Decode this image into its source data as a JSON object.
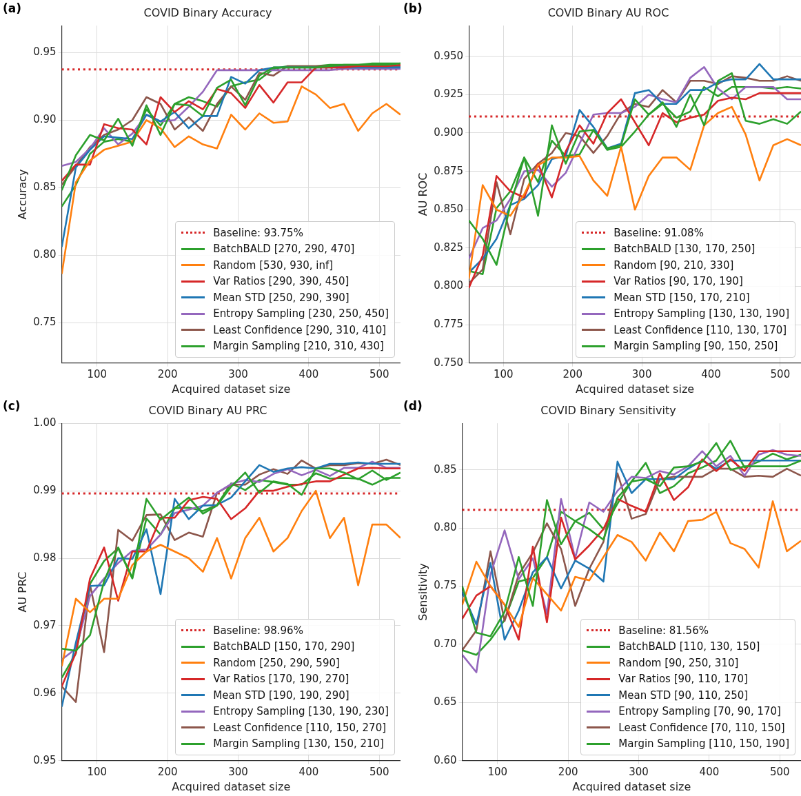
{
  "chart_data": [
    {
      "type": "line",
      "title": "COVID Binary Accuracy",
      "xlabel": "Acquired dataset size",
      "ylabel": "Accuracy",
      "annotations": [
        "(a)"
      ],
      "grid": true,
      "legend": "bottom right",
      "x": [
        50,
        70,
        90,
        110,
        130,
        150,
        170,
        190,
        210,
        230,
        250,
        270,
        290,
        310,
        330,
        350,
        370,
        390,
        410,
        430,
        450,
        470,
        490,
        510,
        530
      ],
      "xlim": [
        50,
        530
      ],
      "xticks": [
        100,
        200,
        300,
        400,
        500
      ],
      "ylim": [
        0.72,
        0.97
      ],
      "yticks": [
        0.75,
        {
          "value": 0.8,
          "label": "0.80"
        },
        0.85,
        {
          "value": 0.9,
          "label": "0.90"
        },
        0.95
      ],
      "ref_lines": [
        {
          "axis": "y",
          "value": 0.9375,
          "label": "Baseline: 93.75%",
          "color": "#d62728",
          "line_style": "dotted"
        }
      ],
      "series": [
        {
          "name": "BatchBALD [270, 290, 470]",
          "color": "#2ca02c",
          "values": [
            0.848,
            0.874,
            0.889,
            0.885,
            0.901,
            0.881,
            0.911,
            0.889,
            0.912,
            0.911,
            0.903,
            0.924,
            0.93,
            0.911,
            0.933,
            0.939,
            0.939,
            0.939,
            0.939,
            0.94,
            0.941,
            0.941,
            0.941,
            0.941,
            0.942
          ]
        },
        {
          "name": "Random [530, 930, inf]",
          "color": "#ff7f0e",
          "values": [
            0.786,
            0.854,
            0.87,
            0.878,
            0.881,
            0.884,
            0.9,
            0.894,
            0.88,
            0.888,
            0.882,
            0.879,
            0.904,
            0.893,
            0.905,
            0.898,
            0.899,
            0.925,
            0.919,
            0.909,
            0.912,
            0.892,
            0.905,
            0.912,
            0.904
          ]
        },
        {
          "name": "Var Ratios [290, 390, 450]",
          "color": "#d62728",
          "values": [
            0.855,
            0.867,
            0.867,
            0.897,
            0.894,
            0.893,
            0.882,
            0.917,
            0.906,
            0.914,
            0.908,
            0.923,
            0.92,
            0.909,
            0.926,
            0.913,
            0.928,
            0.928,
            0.939,
            0.939,
            0.939,
            0.94,
            0.94,
            0.94,
            0.941
          ]
        },
        {
          "name": "Mean STD [250, 290, 390]",
          "color": "#1f77b4",
          "values": [
            0.806,
            0.865,
            0.878,
            0.888,
            0.887,
            0.886,
            0.904,
            0.899,
            0.906,
            0.894,
            0.903,
            0.903,
            0.932,
            0.927,
            0.937,
            0.939,
            0.939,
            0.939,
            0.939,
            0.939,
            0.939,
            0.939,
            0.939,
            0.939,
            0.939
          ]
        },
        {
          "name": "Entropy Sampling [230, 250, 450]",
          "color": "#9467bd",
          "values": [
            0.866,
            0.869,
            0.879,
            0.894,
            0.882,
            0.89,
            0.904,
            0.899,
            0.9,
            0.91,
            0.921,
            0.937,
            0.937,
            0.937,
            0.937,
            0.937,
            0.937,
            0.937,
            0.937,
            0.937,
            0.938,
            0.938,
            0.938,
            0.938,
            0.938
          ]
        },
        {
          "name": "Least Confidence [290, 310, 410]",
          "color": "#8c564b",
          "values": [
            0.852,
            0.866,
            0.88,
            0.889,
            0.893,
            0.9,
            0.917,
            0.912,
            0.893,
            0.902,
            0.892,
            0.912,
            0.925,
            0.915,
            0.935,
            0.933,
            0.94,
            0.94,
            0.94,
            0.94,
            0.94,
            0.94,
            0.94,
            0.94,
            0.94
          ]
        },
        {
          "name": "Margin Sampling [210, 310, 430]",
          "color": "#2ca02c",
          "values": [
            0.836,
            0.852,
            0.875,
            0.884,
            0.886,
            0.884,
            0.908,
            0.896,
            0.912,
            0.917,
            0.914,
            0.91,
            0.925,
            0.928,
            0.93,
            0.938,
            0.94,
            0.94,
            0.94,
            0.941,
            0.941,
            0.941,
            0.942,
            0.942,
            0.942
          ]
        }
      ]
    },
    {
      "type": "line",
      "title": "COVID Binary AU ROC",
      "xlabel": "Acquired dataset size",
      "ylabel": "AU ROC",
      "annotations": [
        "(b)"
      ],
      "grid": true,
      "legend": "bottom right",
      "x": [
        50,
        70,
        90,
        110,
        130,
        150,
        170,
        190,
        210,
        230,
        250,
        270,
        290,
        310,
        330,
        350,
        370,
        390,
        410,
        430,
        450,
        470,
        490,
        510,
        530
      ],
      "xlim": [
        50,
        530
      ],
      "xticks": [
        100,
        200,
        300,
        400,
        500
      ],
      "ylim": [
        0.75,
        0.97
      ],
      "yticks": [
        {
          "value": 0.75,
          "label": "0.750"
        },
        0.775,
        {
          "value": 0.8,
          "label": "0.800"
        },
        0.825,
        {
          "value": 0.85,
          "label": "0.850"
        },
        0.875,
        {
          "value": 0.9,
          "label": "0.900"
        },
        0.925,
        {
          "value": 0.95,
          "label": "0.950"
        }
      ],
      "ref_lines": [
        {
          "axis": "y",
          "value": 0.9108,
          "label": "Baseline: 91.08%",
          "color": "#d62728",
          "line_style": "dotted"
        }
      ],
      "series": [
        {
          "name": "BatchBALD [130, 170, 250]",
          "color": "#2ca02c",
          "values": [
            0.843,
            0.831,
            0.814,
            0.853,
            0.884,
            0.846,
            0.905,
            0.88,
            0.901,
            0.902,
            0.89,
            0.892,
            0.922,
            0.912,
            0.92,
            0.904,
            0.925,
            0.905,
            0.934,
            0.939,
            0.908,
            0.906,
            0.909,
            0.906,
            0.914
          ]
        },
        {
          "name": "Random [90, 210, 330]",
          "color": "#ff7f0e",
          "values": [
            0.805,
            0.866,
            0.85,
            0.846,
            0.86,
            0.879,
            0.884,
            0.884,
            0.885,
            0.869,
            0.859,
            0.891,
            0.85,
            0.872,
            0.884,
            0.884,
            0.876,
            0.905,
            0.913,
            0.917,
            0.899,
            0.869,
            0.892,
            0.896,
            0.892
          ]
        },
        {
          "name": "Var Ratios [90, 170, 190]",
          "color": "#d62728",
          "values": [
            0.799,
            0.82,
            0.872,
            0.862,
            0.858,
            0.88,
            0.858,
            0.888,
            0.905,
            0.893,
            0.913,
            0.922,
            0.907,
            0.892,
            0.913,
            0.907,
            0.91,
            0.912,
            0.921,
            0.923,
            0.922,
            0.926,
            0.926,
            0.926,
            0.926
          ]
        },
        {
          "name": "Mean STD [150, 170, 210]",
          "color": "#1f77b4",
          "values": [
            0.809,
            0.818,
            0.831,
            0.853,
            0.857,
            0.866,
            0.883,
            0.885,
            0.915,
            0.904,
            0.89,
            0.893,
            0.926,
            0.928,
            0.919,
            0.919,
            0.928,
            0.928,
            0.933,
            0.935,
            0.935,
            0.945,
            0.935,
            0.935,
            0.935
          ]
        },
        {
          "name": "Entropy Sampling [130, 130, 190]",
          "color": "#9467bd",
          "values": [
            0.818,
            0.838,
            0.843,
            0.857,
            0.875,
            0.876,
            0.865,
            0.874,
            0.893,
            0.912,
            0.913,
            0.913,
            0.917,
            0.925,
            0.922,
            0.92,
            0.936,
            0.943,
            0.929,
            0.922,
            0.93,
            0.93,
            0.93,
            0.922,
            0.922
          ]
        },
        {
          "name": "Least Confidence [110, 130, 170]",
          "color": "#8c564b",
          "values": [
            0.802,
            0.811,
            0.868,
            0.834,
            0.87,
            0.88,
            0.887,
            0.9,
            0.898,
            0.887,
            0.898,
            0.913,
            0.919,
            0.917,
            0.928,
            0.92,
            0.934,
            0.934,
            0.932,
            0.937,
            0.936,
            0.934,
            0.934,
            0.937,
            0.934
          ]
        },
        {
          "name": "Margin Sampling [90, 150, 250]",
          "color": "#2ca02c",
          "values": [
            0.81,
            0.808,
            0.851,
            0.862,
            0.884,
            0.868,
            0.895,
            0.885,
            0.886,
            0.902,
            0.889,
            0.891,
            0.901,
            0.912,
            0.919,
            0.91,
            0.914,
            0.93,
            0.924,
            0.93,
            0.93,
            0.93,
            0.929,
            0.93,
            0.929
          ]
        }
      ]
    },
    {
      "type": "line",
      "title": "COVID Binary AU PRC",
      "xlabel": "Acquired dataset size",
      "ylabel": "AU PRC",
      "annotations": [
        "(c)"
      ],
      "grid": true,
      "legend": "bottom right",
      "x": [
        50,
        70,
        90,
        110,
        130,
        150,
        170,
        190,
        210,
        230,
        250,
        270,
        290,
        310,
        330,
        350,
        370,
        390,
        410,
        430,
        450,
        470,
        490,
        510,
        530
      ],
      "xlim": [
        50,
        530
      ],
      "xticks": [
        100,
        200,
        300,
        400,
        500
      ],
      "ylim": [
        0.95,
        1.0
      ],
      "yticks": [
        0.95,
        0.96,
        0.97,
        0.98,
        0.99,
        {
          "value": 1.0,
          "label": "1.00"
        }
      ],
      "ref_lines": [
        {
          "axis": "y",
          "value": 0.9896,
          "label": "Baseline: 98.96%",
          "color": "#d62728",
          "line_style": "dotted"
        }
      ],
      "series": [
        {
          "name": "BatchBALD [150, 170, 290]",
          "color": "#2ca02c",
          "values": [
            0.9666,
            0.9663,
            0.9686,
            0.9766,
            0.9816,
            0.9771,
            0.9888,
            0.9857,
            0.9874,
            0.989,
            0.9866,
            0.9878,
            0.9906,
            0.9927,
            0.9897,
            0.9914,
            0.991,
            0.9894,
            0.9933,
            0.9933,
            0.9927,
            0.9917,
            0.993,
            0.9916,
            0.9927
          ]
        },
        {
          "name": "Random [250, 290, 590]",
          "color": "#ff7f0e",
          "values": [
            0.964,
            0.974,
            0.972,
            0.974,
            0.974,
            0.979,
            0.981,
            0.982,
            0.981,
            0.98,
            0.978,
            0.983,
            0.977,
            0.983,
            0.986,
            0.981,
            0.983,
            0.987,
            0.99,
            0.983,
            0.986,
            0.976,
            0.985,
            0.985,
            0.983
          ]
        },
        {
          "name": "Var Ratios [170, 190, 270]",
          "color": "#d62728",
          "values": [
            0.961,
            0.966,
            0.977,
            0.9816,
            0.9737,
            0.981,
            0.981,
            0.986,
            0.986,
            0.9886,
            0.9891,
            0.9888,
            0.9858,
            0.9874,
            0.99,
            0.99,
            0.9906,
            0.991,
            0.9914,
            0.9914,
            0.9924,
            0.9933,
            0.9934,
            0.9933,
            0.9933
          ]
        },
        {
          "name": "Mean STD [190, 190, 290]",
          "color": "#1f77b4",
          "values": [
            0.958,
            0.9675,
            0.9759,
            0.976,
            0.98,
            0.9799,
            0.9843,
            0.9747,
            0.9888,
            0.9858,
            0.9878,
            0.9879,
            0.989,
            0.9914,
            0.9938,
            0.9928,
            0.9933,
            0.9935,
            0.9933,
            0.994,
            0.994,
            0.9942,
            0.994,
            0.994,
            0.994
          ]
        },
        {
          "name": "Entropy Sampling [130, 190, 230]",
          "color": "#9467bd",
          "values": [
            0.965,
            0.9666,
            0.9744,
            0.977,
            0.9793,
            0.9811,
            0.9813,
            0.9835,
            0.9867,
            0.9872,
            0.9878,
            0.9897,
            0.991,
            0.9916,
            0.9913,
            0.9925,
            0.9932,
            0.9923,
            0.9931,
            0.9922,
            0.9934,
            0.9934,
            0.9943,
            0.9934,
            0.9934
          ]
        },
        {
          "name": "Least Confidence [110, 150, 270]",
          "color": "#8c564b",
          "values": [
            0.961,
            0.9587,
            0.9761,
            0.9661,
            0.9842,
            0.9826,
            0.9864,
            0.9865,
            0.9827,
            0.9838,
            0.9832,
            0.9897,
            0.9909,
            0.9909,
            0.9924,
            0.9932,
            0.9925,
            0.9945,
            0.9933,
            0.9938,
            0.9938,
            0.9941,
            0.994,
            0.9946,
            0.9938
          ]
        },
        {
          "name": "Margin Sampling [130, 150, 210]",
          "color": "#2ca02c",
          "values": [
            0.9623,
            0.9659,
            0.9762,
            0.9796,
            0.9815,
            0.977,
            0.9859,
            0.9835,
            0.9874,
            0.9875,
            0.987,
            0.9879,
            0.9911,
            0.9901,
            0.9916,
            0.9913,
            0.9909,
            0.9909,
            0.9926,
            0.9918,
            0.9919,
            0.9918,
            0.9909,
            0.9919,
            0.9919
          ]
        }
      ]
    },
    {
      "type": "line",
      "title": "COVID Binary Sensitivity",
      "xlabel": "Acquired dataset size",
      "ylabel": "Sensitivity",
      "annotations": [
        "(d)"
      ],
      "grid": true,
      "legend": "bottom right",
      "x": [
        50,
        70,
        90,
        110,
        130,
        150,
        170,
        190,
        210,
        230,
        250,
        270,
        290,
        310,
        330,
        350,
        370,
        390,
        410,
        430,
        450,
        470,
        490,
        510,
        530
      ],
      "xlim": [
        50,
        530
      ],
      "xticks": [
        100,
        200,
        300,
        400,
        500
      ],
      "ylim": [
        0.6,
        0.89
      ],
      "yticks": [
        {
          "value": 0.6,
          "label": "0.60"
        },
        0.65,
        {
          "value": 0.7,
          "label": "0.70"
        },
        0.75,
        {
          "value": 0.8,
          "label": "0.80"
        },
        0.85
      ],
      "ref_lines": [
        {
          "axis": "y",
          "value": 0.8156,
          "label": "Baseline: 81.56%",
          "color": "#d62728",
          "line_style": "dotted"
        }
      ],
      "series": [
        {
          "name": "BatchBALD [110, 130, 150]",
          "color": "#2ca02c",
          "values": [
            0.75,
            0.71,
            0.707,
            0.728,
            0.775,
            0.733,
            0.824,
            0.786,
            0.806,
            0.799,
            0.79,
            0.826,
            0.84,
            0.842,
            0.836,
            0.852,
            0.853,
            0.857,
            0.873,
            0.85,
            0.853,
            0.853,
            0.853,
            0.853,
            0.858
          ]
        },
        {
          "name": "Random [90, 250, 310]",
          "color": "#ff7f0e",
          "values": [
            0.734,
            0.771,
            0.75,
            0.734,
            0.715,
            0.757,
            0.743,
            0.729,
            0.758,
            0.755,
            0.775,
            0.794,
            0.788,
            0.772,
            0.796,
            0.78,
            0.806,
            0.807,
            0.814,
            0.787,
            0.782,
            0.766,
            0.823,
            0.78,
            0.789
          ]
        },
        {
          "name": "Var Ratios [90, 110, 170]",
          "color": "#d62728",
          "values": [
            0.722,
            0.742,
            0.75,
            0.734,
            0.704,
            0.784,
            0.719,
            0.809,
            0.773,
            0.785,
            0.799,
            0.825,
            0.819,
            0.814,
            0.847,
            0.824,
            0.835,
            0.859,
            0.849,
            0.859,
            0.849,
            0.866,
            0.866,
            0.866,
            0.866
          ]
        },
        {
          "name": "Mean STD [90, 110, 250]",
          "color": "#1f77b4",
          "values": [
            0.745,
            0.717,
            0.77,
            0.704,
            0.729,
            0.762,
            0.775,
            0.748,
            0.772,
            0.765,
            0.754,
            0.857,
            0.83,
            0.842,
            0.842,
            0.842,
            0.851,
            0.858,
            0.851,
            0.858,
            0.858,
            0.858,
            0.858,
            0.858,
            0.858
          ]
        },
        {
          "name": "Entropy Sampling [70, 90, 170]",
          "color": "#9467bd",
          "values": [
            0.691,
            0.676,
            0.76,
            0.798,
            0.756,
            0.774,
            0.726,
            0.825,
            0.774,
            0.822,
            0.814,
            0.832,
            0.844,
            0.843,
            0.849,
            0.846,
            0.853,
            0.866,
            0.853,
            0.862,
            0.845,
            0.863,
            0.867,
            0.863,
            0.862
          ]
        },
        {
          "name": "Least Confidence [70, 110, 150]",
          "color": "#8c564b",
          "values": [
            0.695,
            0.712,
            0.78,
            0.72,
            0.76,
            0.779,
            0.804,
            0.782,
            0.733,
            0.765,
            0.788,
            0.847,
            0.808,
            0.812,
            0.842,
            0.844,
            0.844,
            0.844,
            0.851,
            0.851,
            0.844,
            0.845,
            0.844,
            0.851,
            0.845
          ]
        },
        {
          "name": "Margin Sampling [110, 150, 190]",
          "color": "#2ca02c",
          "values": [
            0.695,
            0.691,
            0.704,
            0.721,
            0.754,
            0.757,
            0.775,
            0.814,
            0.806,
            0.813,
            0.799,
            0.821,
            0.84,
            0.856,
            0.83,
            0.836,
            0.847,
            0.852,
            0.858,
            0.875,
            0.852,
            0.857,
            0.864,
            0.859,
            0.863
          ]
        }
      ]
    }
  ]
}
